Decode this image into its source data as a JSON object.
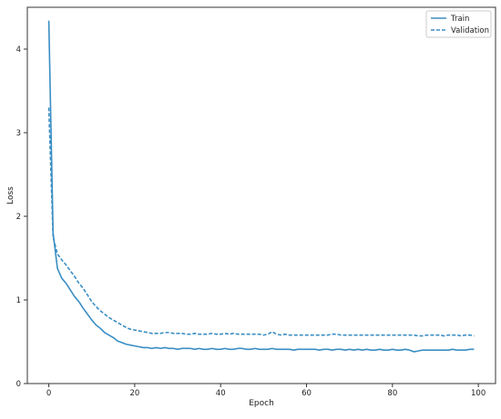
{
  "chart_data": {
    "type": "line",
    "title": "",
    "xlabel": "Epoch",
    "ylabel": "Loss",
    "xlim": [
      -5,
      104
    ],
    "ylim": [
      0,
      4.5
    ],
    "x_ticks": [
      0,
      20,
      40,
      60,
      80,
      100
    ],
    "y_ticks": [
      0,
      1,
      2,
      3,
      4
    ],
    "x_tick_labels": [
      "0",
      "20",
      "40",
      "60",
      "80",
      "100"
    ],
    "y_tick_labels": [
      "0",
      "1",
      "2",
      "3",
      "4"
    ],
    "legend_position": "top-right",
    "grid": false,
    "series": [
      {
        "name": "Train",
        "color": "#3a8ec4",
        "style": "solid",
        "x": [
          0,
          1,
          2,
          3,
          4,
          5,
          6,
          7,
          8,
          9,
          10,
          11,
          12,
          13,
          14,
          15,
          16,
          17,
          18,
          19,
          20,
          21,
          22,
          23,
          24,
          25,
          26,
          27,
          28,
          29,
          30,
          31,
          32,
          33,
          34,
          35,
          36,
          37,
          38,
          39,
          40,
          41,
          42,
          43,
          44,
          45,
          46,
          47,
          48,
          49,
          50,
          51,
          52,
          53,
          54,
          55,
          56,
          57,
          58,
          59,
          60,
          61,
          62,
          63,
          64,
          65,
          66,
          67,
          68,
          69,
          70,
          71,
          72,
          73,
          74,
          75,
          76,
          77,
          78,
          79,
          80,
          81,
          82,
          83,
          84,
          85,
          86,
          87,
          88,
          89,
          90,
          91,
          92,
          93,
          94,
          95,
          96,
          97,
          98,
          99
        ],
        "y": [
          4.34,
          1.8,
          1.38,
          1.26,
          1.2,
          1.12,
          1.04,
          0.98,
          0.9,
          0.83,
          0.76,
          0.7,
          0.66,
          0.61,
          0.58,
          0.55,
          0.51,
          0.49,
          0.47,
          0.46,
          0.45,
          0.44,
          0.43,
          0.43,
          0.42,
          0.43,
          0.42,
          0.43,
          0.42,
          0.42,
          0.41,
          0.42,
          0.42,
          0.42,
          0.41,
          0.42,
          0.41,
          0.41,
          0.42,
          0.41,
          0.41,
          0.42,
          0.41,
          0.41,
          0.42,
          0.42,
          0.41,
          0.41,
          0.42,
          0.41,
          0.41,
          0.41,
          0.42,
          0.41,
          0.41,
          0.41,
          0.41,
          0.4,
          0.41,
          0.41,
          0.41,
          0.41,
          0.41,
          0.4,
          0.41,
          0.41,
          0.4,
          0.41,
          0.41,
          0.4,
          0.41,
          0.4,
          0.41,
          0.4,
          0.41,
          0.4,
          0.4,
          0.41,
          0.4,
          0.4,
          0.41,
          0.4,
          0.4,
          0.41,
          0.4,
          0.38,
          0.39,
          0.4,
          0.4,
          0.4,
          0.4,
          0.4,
          0.4,
          0.4,
          0.41,
          0.4,
          0.4,
          0.4,
          0.41,
          0.41
        ]
      },
      {
        "name": "Validation",
        "color": "#3a8ec4",
        "style": "dashed",
        "x": [
          0,
          1,
          2,
          3,
          4,
          5,
          6,
          7,
          8,
          9,
          10,
          11,
          12,
          13,
          14,
          15,
          16,
          17,
          18,
          19,
          20,
          21,
          22,
          23,
          24,
          25,
          26,
          27,
          28,
          29,
          30,
          31,
          32,
          33,
          34,
          35,
          36,
          37,
          38,
          39,
          40,
          41,
          42,
          43,
          44,
          45,
          46,
          47,
          48,
          49,
          50,
          51,
          52,
          53,
          54,
          55,
          56,
          57,
          58,
          59,
          60,
          61,
          62,
          63,
          64,
          65,
          66,
          67,
          68,
          69,
          70,
          71,
          72,
          73,
          74,
          75,
          76,
          77,
          78,
          79,
          80,
          81,
          82,
          83,
          84,
          85,
          86,
          87,
          88,
          89,
          90,
          91,
          92,
          93,
          94,
          95,
          96,
          97,
          98,
          99
        ],
        "y": [
          3.3,
          1.75,
          1.55,
          1.48,
          1.42,
          1.35,
          1.28,
          1.2,
          1.14,
          1.06,
          0.98,
          0.92,
          0.87,
          0.83,
          0.79,
          0.76,
          0.73,
          0.7,
          0.67,
          0.65,
          0.64,
          0.63,
          0.62,
          0.61,
          0.6,
          0.6,
          0.6,
          0.61,
          0.61,
          0.6,
          0.6,
          0.6,
          0.59,
          0.59,
          0.6,
          0.59,
          0.59,
          0.59,
          0.6,
          0.59,
          0.59,
          0.6,
          0.59,
          0.6,
          0.59,
          0.59,
          0.59,
          0.59,
          0.59,
          0.59,
          0.58,
          0.59,
          0.62,
          0.59,
          0.58,
          0.59,
          0.58,
          0.58,
          0.58,
          0.58,
          0.58,
          0.58,
          0.58,
          0.58,
          0.58,
          0.58,
          0.59,
          0.59,
          0.58,
          0.58,
          0.58,
          0.58,
          0.58,
          0.58,
          0.58,
          0.58,
          0.58,
          0.58,
          0.58,
          0.58,
          0.58,
          0.58,
          0.58,
          0.58,
          0.58,
          0.58,
          0.57,
          0.57,
          0.58,
          0.58,
          0.58,
          0.58,
          0.57,
          0.58,
          0.58,
          0.58,
          0.57,
          0.58,
          0.58,
          0.57
        ]
      }
    ]
  }
}
